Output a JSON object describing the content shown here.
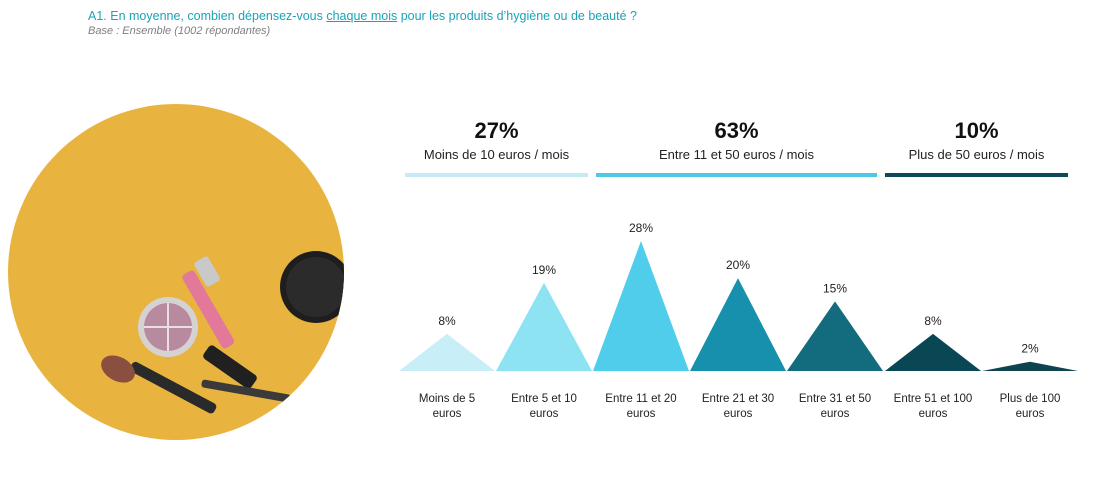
{
  "header": {
    "question_pre": "A1. En moyenne, combien dépensez-vous ",
    "question_underlined": "chaque mois",
    "question_post": " pour les produits d’hygiène ou de beauté ?",
    "base": "Base : Ensemble (1002 répondantes)"
  },
  "groups": [
    {
      "pct": "27%",
      "label": "Moins de 10 euros / mois",
      "color": "#c5ecf6"
    },
    {
      "pct": "63%",
      "label": "Entre 11 et 50 euros / mois",
      "color": "#4fc8e6"
    },
    {
      "pct": "10%",
      "label": "Plus de 50 euros / mois",
      "color": "#0c4a5a"
    }
  ],
  "chart_data": {
    "type": "bar",
    "shape": "triangle",
    "categories": [
      [
        "Moins de 5",
        "euros"
      ],
      [
        "Entre 5 et 10",
        "euros"
      ],
      [
        "Entre 11 et 20",
        "euros"
      ],
      [
        "Entre 21 et 30",
        "euros"
      ],
      [
        "Entre 31 et 50",
        "euros"
      ],
      [
        "Entre 51 et 100",
        "euros"
      ],
      [
        "Plus de 100",
        "euros"
      ]
    ],
    "values": [
      8,
      19,
      28,
      20,
      15,
      8,
      2
    ],
    "value_labels": [
      "8%",
      "19%",
      "28%",
      "20%",
      "15%",
      "8%",
      "2%"
    ],
    "colors": [
      "#c8eef7",
      "#8ee3f3",
      "#4fcdea",
      "#1690ad",
      "#136b7e",
      "#0a4755",
      "#0e4350"
    ],
    "ylim": [
      0,
      28
    ]
  }
}
